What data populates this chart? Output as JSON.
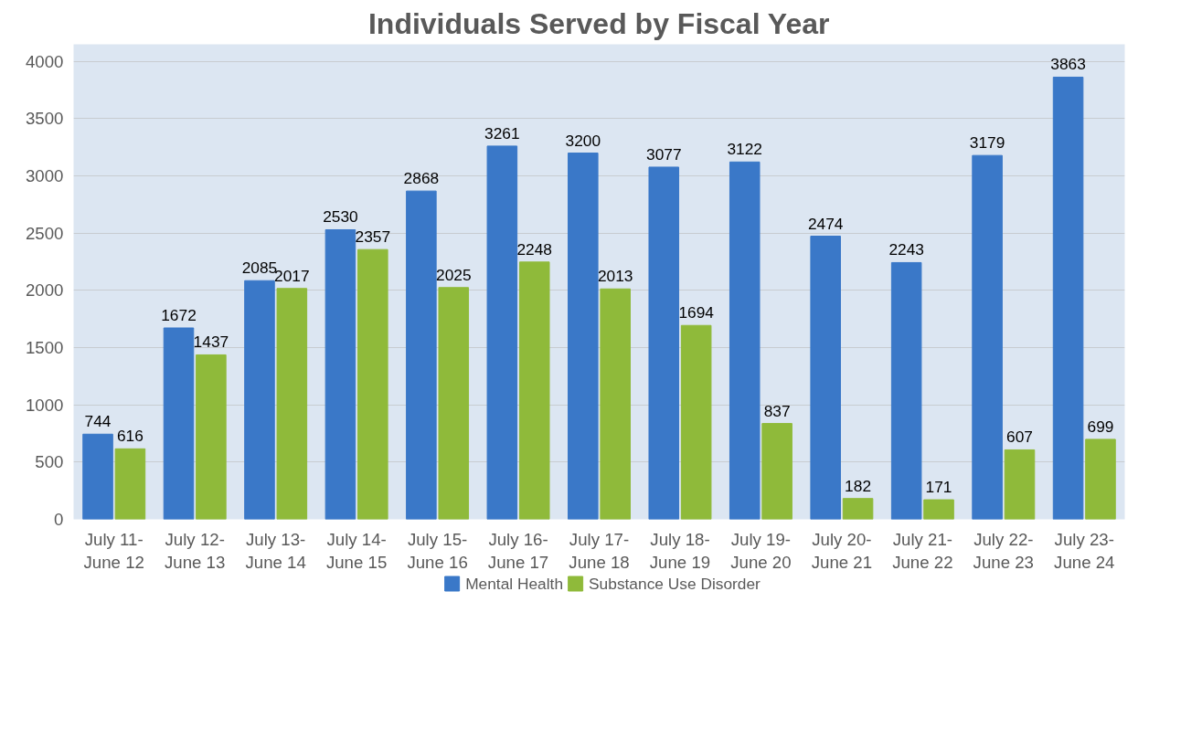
{
  "chart_data": {
    "type": "bar",
    "title": "Individuals Served by Fiscal Year",
    "categories": [
      "July 11-\nJune 12",
      "July 12-\nJune 13",
      "July 13-\nJune 14",
      "July 14-\nJune 15",
      "July 15-\nJune 16",
      "July 16-\nJune 17",
      "July 17-\nJune 18",
      "July 18-\nJune 19",
      "July 19-\nJune 20",
      "July 20-\nJune 21",
      "July 21-\nJune 22",
      "July 22-\nJune 23",
      "July 23-\nJune 24"
    ],
    "series": [
      {
        "name": "Mental Health",
        "color": "#3a78c8",
        "values": [
          744,
          1672,
          2085,
          2530,
          2868,
          3261,
          3200,
          3077,
          3122,
          2474,
          2243,
          3179,
          3863
        ]
      },
      {
        "name": "Substance Use Disorder",
        "color": "#8fba3a",
        "values": [
          616,
          1437,
          2017,
          2357,
          2025,
          2248,
          2013,
          1694,
          837,
          182,
          171,
          607,
          699
        ]
      }
    ],
    "ylim": [
      0,
      4150
    ],
    "yticks": [
      0,
      500,
      1000,
      1500,
      2000,
      2500,
      3000,
      3500,
      4000
    ],
    "grid": "y",
    "legend": "bottom",
    "data_labels": true
  }
}
